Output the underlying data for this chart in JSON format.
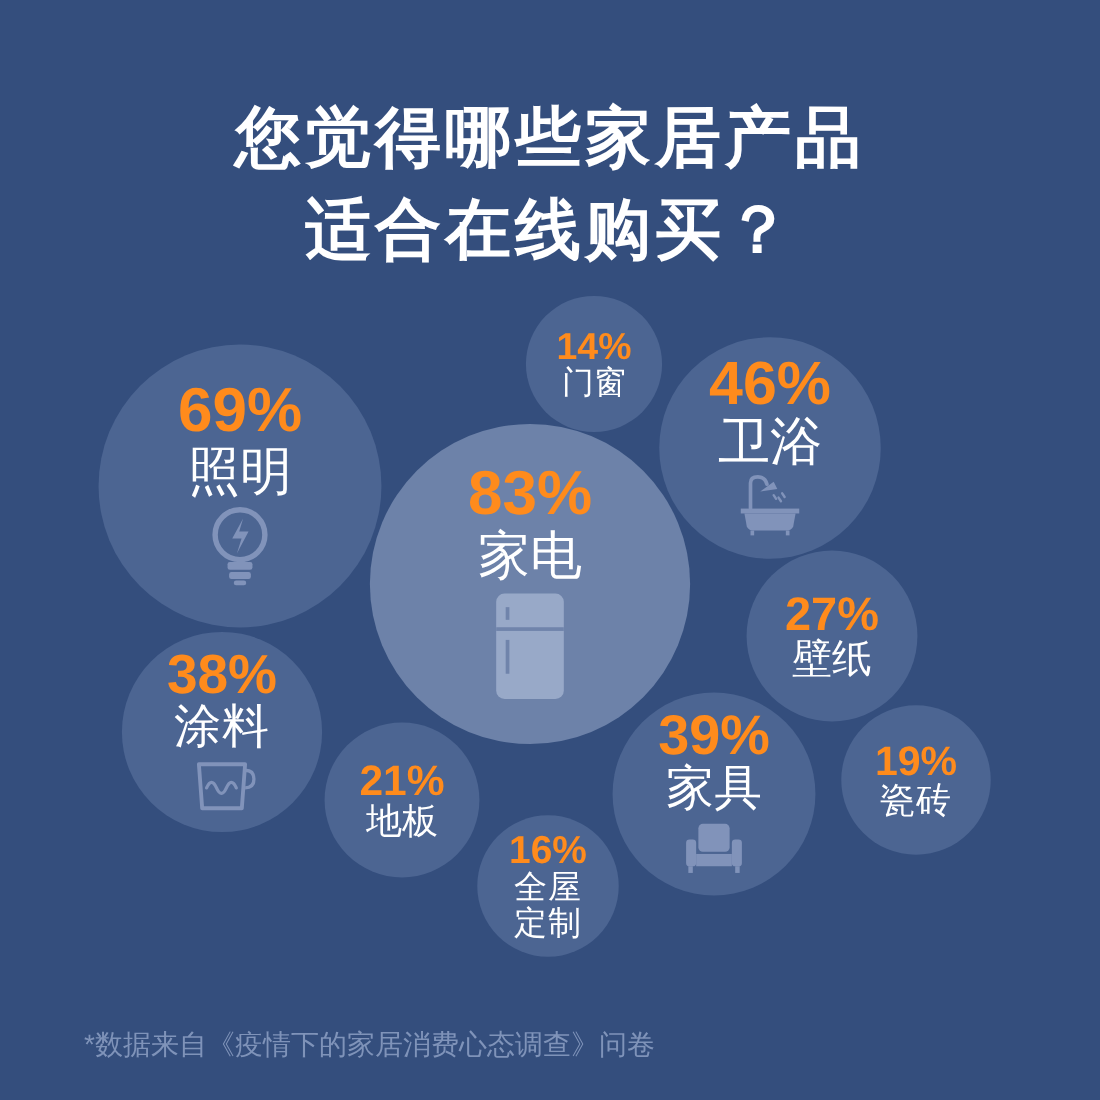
{
  "chart_data": {
    "type": "other",
    "title": "您觉得哪些家居产品适合在线购买？",
    "categories": [
      "门窗",
      "卫浴",
      "照明",
      "家电",
      "壁纸",
      "涂料",
      "瓷砖",
      "家具",
      "地板",
      "全屋定制"
    ],
    "values": [
      14,
      46,
      69,
      83,
      27,
      38,
      19,
      39,
      21,
      16
    ],
    "value_labels": [
      "14%",
      "46%",
      "69%",
      "83%",
      "27%",
      "38%",
      "19%",
      "39%",
      "21%",
      "16%"
    ],
    "colors": [
      "#4c6592",
      "#4c6592",
      "#4c6592",
      "#6d82a9",
      "#4c6592",
      "#4c6592",
      "#4c6592",
      "#4c6592",
      "#4c6592",
      "#4c6592"
    ],
    "annotations": [
      "*数据来自《疫情下的家居消费心态调查》问卷"
    ]
  }
}
